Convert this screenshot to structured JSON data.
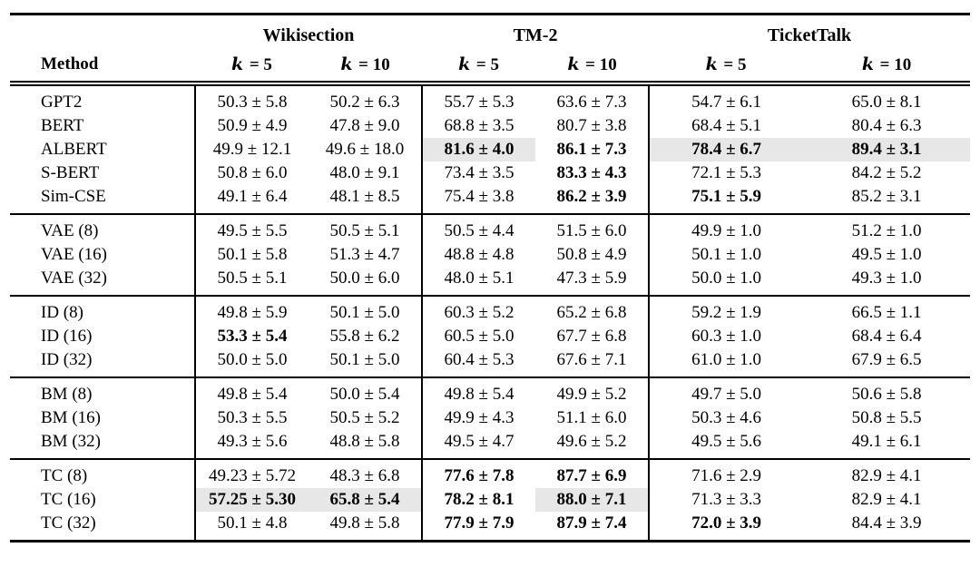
{
  "page": {
    "background": "#ffffff"
  },
  "colors": {
    "highlight_bg": "#e7e7e7",
    "text": "#000000",
    "rule": "#000000"
  },
  "table": {
    "method_label": "Method",
    "groups": [
      {
        "label": "Wikisection"
      },
      {
        "label": "TM-2"
      },
      {
        "label": "TicketTalk"
      }
    ],
    "k_headers": [
      {
        "var": "k",
        "rest": "= 5"
      },
      {
        "var": "k",
        "rest": "= 10"
      },
      {
        "var": "k",
        "rest": "= 5"
      },
      {
        "var": "k",
        "rest": "= 10"
      },
      {
        "var": "k",
        "rest": "= 5"
      },
      {
        "var": "k",
        "rest": "= 10"
      }
    ],
    "blocks": [
      {
        "rows": [
          {
            "method": "GPT2",
            "cells": [
              {
                "text": "50.3 ± 5.8"
              },
              {
                "text": "50.2 ± 6.3"
              },
              {
                "text": "55.7 ± 5.3"
              },
              {
                "text": "63.6 ± 7.3"
              },
              {
                "text": "54.7 ± 6.1"
              },
              {
                "text": "65.0 ± 8.1"
              }
            ]
          },
          {
            "method": "BERT",
            "cells": [
              {
                "text": "50.9 ± 4.9"
              },
              {
                "text": "47.8 ± 9.0"
              },
              {
                "text": "68.8 ± 3.5"
              },
              {
                "text": "80.7 ± 3.8"
              },
              {
                "text": "68.4 ± 5.1"
              },
              {
                "text": "80.4 ± 6.3"
              }
            ]
          },
          {
            "method": "ALBERT",
            "cells": [
              {
                "text": "49.9 ± 12.1"
              },
              {
                "text": "49.6 ± 18.0"
              },
              {
                "text": "81.6 ± 4.0",
                "bold": true,
                "highlight": true
              },
              {
                "text": "86.1 ± 7.3",
                "bold": true
              },
              {
                "text": "78.4 ± 6.7",
                "bold": true,
                "highlight": true
              },
              {
                "text": "89.4 ± 3.1",
                "bold": true,
                "highlight": true
              }
            ]
          },
          {
            "method": "S-BERT",
            "cells": [
              {
                "text": "50.8 ± 6.0"
              },
              {
                "text": "48.0 ± 9.1"
              },
              {
                "text": "73.4 ± 3.5"
              },
              {
                "text": "83.3 ± 4.3",
                "bold": true
              },
              {
                "text": "72.1 ± 5.3"
              },
              {
                "text": "84.2 ± 5.2"
              }
            ]
          },
          {
            "method": "Sim-CSE",
            "cells": [
              {
                "text": "49.1 ± 6.4"
              },
              {
                "text": "48.1 ± 8.5"
              },
              {
                "text": "75.4 ± 3.8"
              },
              {
                "text": "86.2 ± 3.9",
                "bold": true
              },
              {
                "text": "75.1 ± 5.9",
                "bold": true
              },
              {
                "text": "85.2 ± 3.1"
              }
            ]
          }
        ]
      },
      {
        "rows": [
          {
            "method": "VAE (8)",
            "cells": [
              {
                "text": "49.5 ± 5.5"
              },
              {
                "text": "50.5 ± 5.1"
              },
              {
                "text": "50.5 ± 4.4"
              },
              {
                "text": "51.5 ± 6.0"
              },
              {
                "text": "49.9 ± 1.0"
              },
              {
                "text": "51.2 ± 1.0"
              }
            ]
          },
          {
            "method": "VAE (16)",
            "cells": [
              {
                "text": "50.1 ± 5.8"
              },
              {
                "text": "51.3 ± 4.7"
              },
              {
                "text": "48.8 ± 4.8"
              },
              {
                "text": "50.8 ± 4.9"
              },
              {
                "text": "50.1 ± 1.0"
              },
              {
                "text": "49.5 ± 1.0"
              }
            ]
          },
          {
            "method": "VAE (32)",
            "cells": [
              {
                "text": "50.5 ± 5.1"
              },
              {
                "text": "50.0 ± 6.0"
              },
              {
                "text": "48.0 ± 5.1"
              },
              {
                "text": "47.3 ± 5.9"
              },
              {
                "text": "50.0 ± 1.0"
              },
              {
                "text": "49.3 ± 1.0"
              }
            ]
          }
        ]
      },
      {
        "rows": [
          {
            "method": "ID (8)",
            "cells": [
              {
                "text": "49.8 ± 5.9"
              },
              {
                "text": "50.1 ± 5.0"
              },
              {
                "text": "60.3 ± 5.2"
              },
              {
                "text": "65.2 ± 6.8"
              },
              {
                "text": "59.2 ± 1.9"
              },
              {
                "text": "66.5 ± 1.1"
              }
            ]
          },
          {
            "method": "ID (16)",
            "cells": [
              {
                "text": "53.3 ± 5.4",
                "bold": true
              },
              {
                "text": "55.8 ± 6.2"
              },
              {
                "text": "60.5 ± 5.0"
              },
              {
                "text": "67.7 ± 6.8"
              },
              {
                "text": "60.3 ± 1.0"
              },
              {
                "text": "68.4 ± 6.4"
              }
            ]
          },
          {
            "method": "ID (32)",
            "cells": [
              {
                "text": "50.0 ± 5.0"
              },
              {
                "text": "50.1 ± 5.0"
              },
              {
                "text": "60.4 ± 5.3"
              },
              {
                "text": "67.6 ± 7.1"
              },
              {
                "text": "61.0 ± 1.0"
              },
              {
                "text": "67.9 ± 6.5"
              }
            ]
          }
        ]
      },
      {
        "rows": [
          {
            "method": "BM (8)",
            "cells": [
              {
                "text": "49.8 ± 5.4"
              },
              {
                "text": "50.0 ± 5.4"
              },
              {
                "text": "49.8 ± 5.4"
              },
              {
                "text": "49.9 ± 5.2"
              },
              {
                "text": "49.7 ± 5.0"
              },
              {
                "text": "50.6 ± 5.8"
              }
            ]
          },
          {
            "method": "BM (16)",
            "cells": [
              {
                "text": "50.3 ± 5.5"
              },
              {
                "text": "50.5 ± 5.2"
              },
              {
                "text": "49.9 ± 4.3"
              },
              {
                "text": "51.1 ± 6.0"
              },
              {
                "text": "50.3 ± 4.6"
              },
              {
                "text": "50.8 ± 5.5"
              }
            ]
          },
          {
            "method": "BM (32)",
            "cells": [
              {
                "text": "49.3 ± 5.6"
              },
              {
                "text": "48.8 ± 5.8"
              },
              {
                "text": "49.5 ± 4.7"
              },
              {
                "text": "49.6 ± 5.2"
              },
              {
                "text": "49.5 ± 5.6"
              },
              {
                "text": "49.1 ± 6.1"
              }
            ]
          }
        ]
      },
      {
        "rows": [
          {
            "method": "TC (8)",
            "cells": [
              {
                "text": "49.23 ± 5.72"
              },
              {
                "text": "48.3 ± 6.8"
              },
              {
                "text": "77.6 ± 7.8",
                "bold": true
              },
              {
                "text": "87.7 ± 6.9",
                "bold": true
              },
              {
                "text": "71.6 ± 2.9"
              },
              {
                "text": "82.9 ± 4.1"
              }
            ]
          },
          {
            "method": "TC (16)",
            "cells": [
              {
                "text": "57.25 ± 5.30",
                "bold": true,
                "highlight": true
              },
              {
                "text": "65.8 ± 5.4",
                "bold": true,
                "highlight": true
              },
              {
                "text": "78.2 ± 8.1",
                "bold": true
              },
              {
                "text": "88.0 ± 7.1",
                "bold": true,
                "highlight": true
              },
              {
                "text": "71.3 ± 3.3"
              },
              {
                "text": "82.9 ± 4.1"
              }
            ]
          },
          {
            "method": "TC (32)",
            "cells": [
              {
                "text": "50.1 ± 4.8"
              },
              {
                "text": "49.8 ± 5.8"
              },
              {
                "text": "77.9 ± 7.9",
                "bold": true
              },
              {
                "text": "87.9 ± 7.4",
                "bold": true
              },
              {
                "text": "72.0 ± 3.9",
                "bold": true
              },
              {
                "text": "84.4 ± 3.9"
              }
            ]
          }
        ]
      }
    ]
  }
}
